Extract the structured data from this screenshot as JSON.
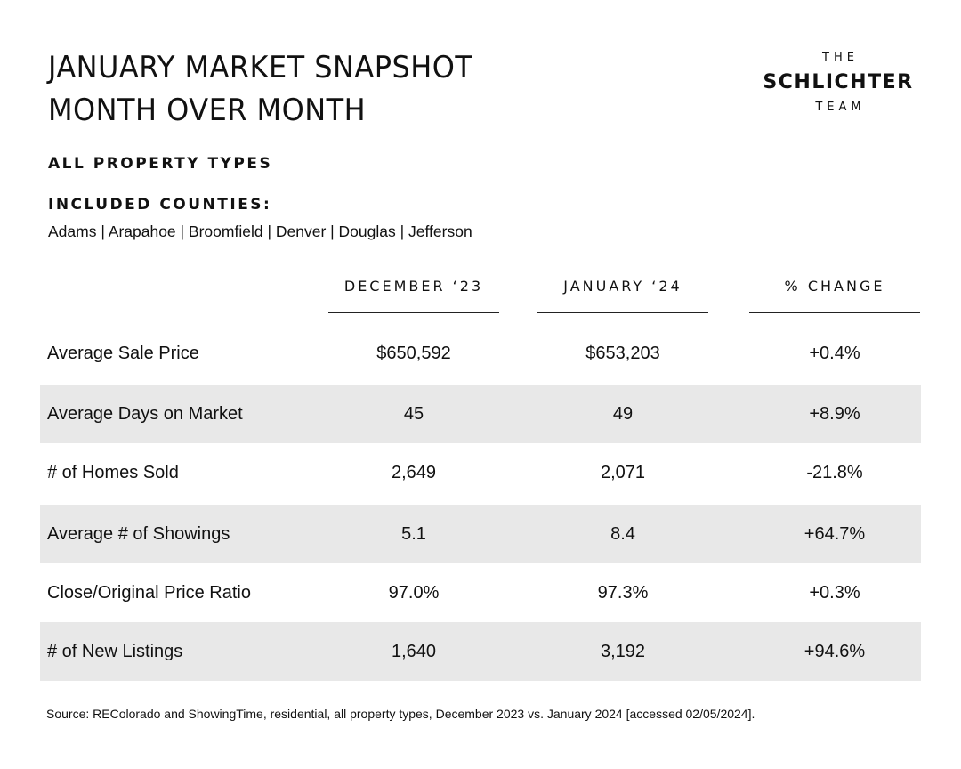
{
  "title": {
    "line1": "JANUARY MARKET SNAPSHOT",
    "line2": "MONTH OVER MONTH"
  },
  "logo": {
    "top": "THE",
    "name": "SCHLICHTER",
    "bottom": "TEAM"
  },
  "property_types": "ALL PROPERTY TYPES",
  "counties_heading": "INCLUDED COUNTIES:",
  "counties_list": "Adams | Arapahoe | Broomfield | Denver | Douglas | Jefferson",
  "table": {
    "columns": [
      "DECEMBER ‘23",
      "JANUARY ‘24",
      "% CHANGE"
    ],
    "rows": [
      {
        "label": "Average Sale Price",
        "dec": "$650,592",
        "jan": "$653,203",
        "change": "+0.4%"
      },
      {
        "label": "Average Days on Market",
        "dec": "45",
        "jan": "49",
        "change": "+8.9%"
      },
      {
        "label": "# of Homes Sold",
        "dec": "2,649",
        "jan": "2,071",
        "change": "-21.8%"
      },
      {
        "label": "Average # of Showings",
        "dec": "5.1",
        "jan": "8.4",
        "change": "+64.7%"
      },
      {
        "label": "Close/Original Price Ratio",
        "dec": "97.0%",
        "jan": "97.3%",
        "change": "+0.3%"
      },
      {
        "label": "# of New Listings",
        "dec": "1,640",
        "jan": "3,192",
        "change": "+94.6%"
      }
    ]
  },
  "source": "Source: REColorado and ShowingTime, residential, all property types, December 2023 vs. January 2024 [accessed 02/05/2024].",
  "colors": {
    "text": "#111111",
    "row_shade": "#e8e8e8",
    "background": "#ffffff"
  }
}
